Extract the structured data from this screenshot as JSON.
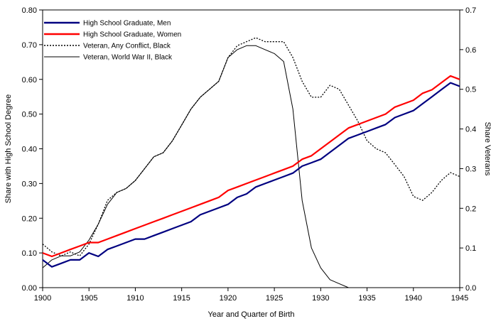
{
  "chart_data": {
    "type": "line",
    "xlabel": "Year and Quarter of Birth",
    "ylabel_left": "Share with High School Degree",
    "ylabel_right": "Share Veterans",
    "xlim": [
      1900,
      1945
    ],
    "ylim_left": [
      0,
      0.8
    ],
    "ylim_right": [
      0,
      0.7
    ],
    "xticks": [
      "1900",
      "1905",
      "1910",
      "1915",
      "1920",
      "1925",
      "1930",
      "1935",
      "1940",
      "1945"
    ],
    "yticks_left": [
      "0.00",
      "0.10",
      "0.20",
      "0.30",
      "0.40",
      "0.50",
      "0.60",
      "0.70",
      "0.80"
    ],
    "yticks_right": [
      "0.0",
      "0.1",
      "0.2",
      "0.3",
      "0.4",
      "0.5",
      "0.6",
      "0.7"
    ],
    "legend_position": "top-left",
    "grid": false,
    "series": [
      {
        "name": "High School Graduate, Men",
        "axis": "left",
        "color": "#000080",
        "style": "solid",
        "x": [
          1900,
          1901,
          1902,
          1903,
          1904,
          1905,
          1906,
          1907,
          1908,
          1909,
          1910,
          1911,
          1912,
          1913,
          1914,
          1915,
          1916,
          1917,
          1918,
          1919,
          1920,
          1921,
          1922,
          1923,
          1924,
          1925,
          1926,
          1927,
          1928,
          1929,
          1930,
          1931,
          1932,
          1933,
          1934,
          1935,
          1936,
          1937,
          1938,
          1939,
          1940,
          1941,
          1942,
          1943,
          1944,
          1945
        ],
        "values": [
          0.08,
          0.06,
          0.07,
          0.08,
          0.08,
          0.1,
          0.09,
          0.11,
          0.12,
          0.13,
          0.14,
          0.14,
          0.15,
          0.16,
          0.17,
          0.18,
          0.19,
          0.21,
          0.22,
          0.23,
          0.24,
          0.26,
          0.27,
          0.29,
          0.3,
          0.31,
          0.32,
          0.33,
          0.35,
          0.36,
          0.37,
          0.39,
          0.41,
          0.43,
          0.44,
          0.45,
          0.46,
          0.47,
          0.49,
          0.5,
          0.51,
          0.53,
          0.55,
          0.57,
          0.59,
          0.58
        ]
      },
      {
        "name": "High School Graduate, Women",
        "axis": "left",
        "color": "#ff0000",
        "style": "solid",
        "x": [
          1900,
          1901,
          1902,
          1903,
          1904,
          1905,
          1906,
          1907,
          1908,
          1909,
          1910,
          1911,
          1912,
          1913,
          1914,
          1915,
          1916,
          1917,
          1918,
          1919,
          1920,
          1921,
          1922,
          1923,
          1924,
          1925,
          1926,
          1927,
          1928,
          1929,
          1930,
          1931,
          1932,
          1933,
          1934,
          1935,
          1936,
          1937,
          1938,
          1939,
          1940,
          1941,
          1942,
          1943,
          1944,
          1945
        ],
        "values": [
          0.1,
          0.09,
          0.1,
          0.11,
          0.12,
          0.13,
          0.13,
          0.14,
          0.15,
          0.16,
          0.17,
          0.18,
          0.19,
          0.2,
          0.21,
          0.22,
          0.23,
          0.24,
          0.25,
          0.26,
          0.28,
          0.29,
          0.3,
          0.31,
          0.32,
          0.33,
          0.34,
          0.35,
          0.37,
          0.38,
          0.4,
          0.42,
          0.44,
          0.46,
          0.47,
          0.48,
          0.49,
          0.5,
          0.52,
          0.53,
          0.54,
          0.56,
          0.57,
          0.59,
          0.61,
          0.6
        ]
      },
      {
        "name": "Veteran, Any Conflict, Black",
        "axis": "right",
        "color": "#000000",
        "style": "dotted",
        "x": [
          1900,
          1901,
          1902,
          1903,
          1904,
          1905,
          1906,
          1907,
          1908,
          1909,
          1910,
          1911,
          1912,
          1913,
          1914,
          1915,
          1916,
          1917,
          1918,
          1919,
          1920,
          1921,
          1922,
          1923,
          1924,
          1925,
          1926,
          1927,
          1928,
          1929,
          1930,
          1931,
          1932,
          1933,
          1934,
          1935,
          1936,
          1937,
          1938,
          1939,
          1940,
          1941,
          1942,
          1943,
          1944,
          1945
        ],
        "values": [
          0.11,
          0.09,
          0.08,
          0.09,
          0.08,
          0.11,
          0.16,
          0.22,
          0.24,
          0.25,
          0.27,
          0.3,
          0.33,
          0.34,
          0.37,
          0.41,
          0.45,
          0.48,
          0.5,
          0.52,
          0.58,
          0.61,
          0.62,
          0.63,
          0.62,
          0.62,
          0.62,
          0.58,
          0.52,
          0.48,
          0.48,
          0.51,
          0.5,
          0.46,
          0.42,
          0.37,
          0.35,
          0.34,
          0.31,
          0.28,
          0.23,
          0.22,
          0.24,
          0.27,
          0.29,
          0.28
        ]
      },
      {
        "name": "Veteran, World War II, Black",
        "axis": "right",
        "color": "#000000",
        "style": "solid",
        "x": [
          1900,
          1901,
          1902,
          1903,
          1904,
          1905,
          1906,
          1907,
          1908,
          1909,
          1910,
          1911,
          1912,
          1913,
          1914,
          1915,
          1916,
          1917,
          1918,
          1919,
          1920,
          1921,
          1922,
          1923,
          1924,
          1925,
          1926,
          1927,
          1928,
          1929,
          1930,
          1931,
          1932,
          1933
        ],
        "values": [
          0.05,
          0.07,
          0.08,
          0.08,
          0.09,
          0.12,
          0.16,
          0.21,
          0.24,
          0.25,
          0.27,
          0.3,
          0.33,
          0.34,
          0.37,
          0.41,
          0.45,
          0.48,
          0.5,
          0.52,
          0.58,
          0.6,
          0.61,
          0.61,
          0.6,
          0.59,
          0.57,
          0.45,
          0.22,
          0.1,
          0.05,
          0.02,
          0.01,
          0.0
        ]
      }
    ]
  }
}
